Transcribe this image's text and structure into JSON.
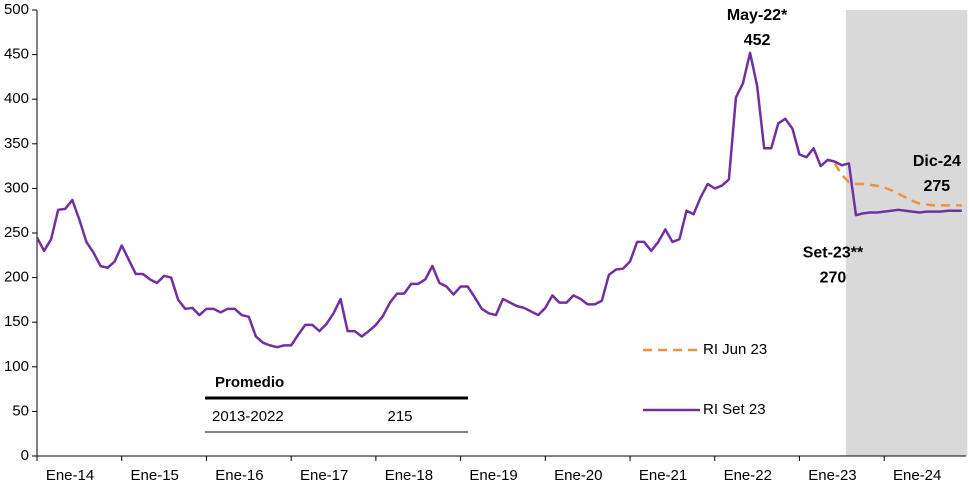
{
  "chart_data": {
    "type": "line",
    "categories": [
      "Ene-14",
      null,
      null,
      null,
      null,
      null,
      null,
      null,
      null,
      null,
      null,
      null,
      "Ene-15",
      null,
      null,
      null,
      null,
      null,
      null,
      null,
      null,
      null,
      null,
      null,
      "Ene-16",
      null,
      null,
      null,
      null,
      null,
      null,
      null,
      null,
      null,
      null,
      null,
      "Ene-17",
      null,
      null,
      null,
      null,
      null,
      null,
      null,
      null,
      null,
      null,
      null,
      "Ene-18",
      null,
      null,
      null,
      null,
      null,
      null,
      null,
      null,
      null,
      null,
      null,
      "Ene-19",
      null,
      null,
      null,
      null,
      null,
      null,
      null,
      null,
      null,
      null,
      null,
      "Ene-20",
      null,
      null,
      null,
      null,
      null,
      null,
      null,
      null,
      null,
      null,
      null,
      "Ene-21",
      null,
      null,
      null,
      null,
      null,
      null,
      null,
      null,
      null,
      null,
      null,
      "Ene-22",
      null,
      null,
      null,
      null,
      null,
      null,
      null,
      null,
      null,
      null,
      null,
      "Ene-23",
      null,
      null,
      null,
      null,
      null,
      null,
      null,
      null,
      null,
      null,
      null,
      "Ene-24",
      null,
      null,
      null,
      null,
      null,
      null,
      null,
      null,
      null,
      null,
      null
    ],
    "series": [
      {
        "name": "RI Jun 23",
        "color": "#f0913a",
        "dashed": true,
        "values": [
          null,
          null,
          null,
          null,
          null,
          null,
          null,
          null,
          null,
          null,
          null,
          null,
          null,
          null,
          null,
          null,
          null,
          null,
          null,
          null,
          null,
          null,
          null,
          null,
          null,
          null,
          null,
          null,
          null,
          null,
          null,
          null,
          null,
          null,
          null,
          null,
          null,
          null,
          null,
          null,
          null,
          null,
          null,
          null,
          null,
          null,
          null,
          null,
          null,
          null,
          null,
          null,
          null,
          null,
          null,
          null,
          null,
          null,
          null,
          null,
          null,
          null,
          null,
          null,
          null,
          null,
          null,
          null,
          null,
          null,
          null,
          null,
          null,
          null,
          null,
          null,
          null,
          null,
          null,
          null,
          null,
          null,
          null,
          null,
          null,
          null,
          null,
          null,
          null,
          null,
          null,
          null,
          null,
          null,
          null,
          null,
          null,
          null,
          null,
          null,
          null,
          null,
          null,
          null,
          null,
          null,
          null,
          null,
          null,
          null,
          null,
          null,
          null,
          328,
          315,
          307,
          305,
          305,
          304,
          303,
          301,
          298,
          294,
          290,
          286,
          283,
          282,
          281,
          281,
          281,
          281,
          281
        ]
      },
      {
        "name": "RI Set 23",
        "color": "#7030a0",
        "dashed": false,
        "values": [
          245,
          230,
          243,
          276,
          277,
          287,
          265,
          240,
          228,
          213,
          211,
          218,
          236,
          220,
          204,
          204,
          198,
          194,
          202,
          200,
          175,
          165,
          166,
          158,
          165,
          165,
          161,
          165,
          165,
          158,
          156,
          134,
          127,
          124,
          122,
          124,
          124,
          136,
          147,
          147,
          140,
          148,
          160,
          176,
          140,
          140,
          134,
          140,
          147,
          157,
          172,
          182,
          182,
          193,
          193,
          198,
          213,
          194,
          190,
          181,
          190,
          190,
          178,
          165,
          160,
          158,
          176,
          172,
          168,
          166,
          162,
          158,
          166,
          180,
          172,
          172,
          180,
          176,
          170,
          170,
          174,
          203,
          209,
          210,
          218,
          240,
          240,
          230,
          240,
          254,
          240,
          243,
          275,
          271,
          290,
          305,
          300,
          303,
          310,
          402,
          418,
          452,
          415,
          345,
          345,
          373,
          378,
          367,
          338,
          335,
          345,
          325,
          332,
          330,
          326,
          328,
          270,
          272,
          273,
          273,
          274,
          275,
          276,
          275,
          274,
          273,
          274,
          274,
          274,
          275,
          275,
          275
        ]
      }
    ],
    "annotations": [
      {
        "label": "May-22*",
        "value": 452,
        "index": 101
      },
      {
        "label": "Set-23**",
        "value": 270,
        "index": 116
      },
      {
        "label": "Dic-24",
        "value": 275,
        "index": 131
      }
    ],
    "table": {
      "header": "Promedio",
      "period": "2013-2022",
      "average": 215
    },
    "ylim": [
      0,
      500
    ],
    "yticks": [
      0,
      50,
      100,
      150,
      200,
      250,
      300,
      350,
      400,
      450,
      500
    ],
    "grid": false
  }
}
